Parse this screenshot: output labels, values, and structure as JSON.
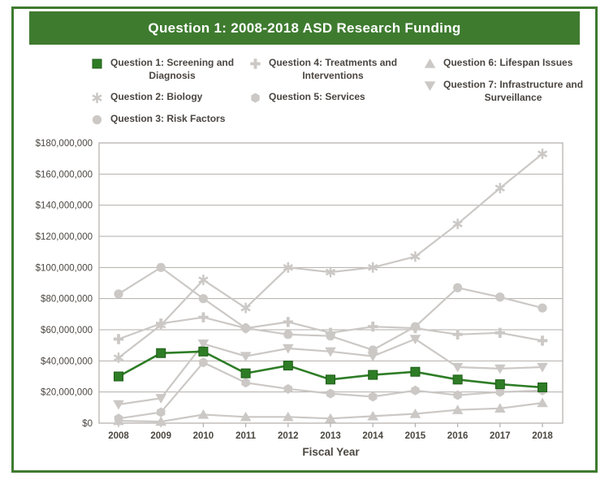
{
  "header": {
    "title": "Question 1: 2008-2018 ASD Research Funding"
  },
  "colors": {
    "brand_green": "#3e7b2f",
    "series_green": "#2e7d26",
    "series_green_stroke": "#1f5e18",
    "series_gray": "#cbc8c5",
    "grid_gray": "#b2aeaa",
    "axis_text": "#4c4741",
    "legend_text": "#4a4540"
  },
  "chart_data": {
    "type": "line",
    "title": "Question 1: 2008-2018 ASD Research Funding",
    "xlabel": "Fiscal Year",
    "ylabel": "",
    "x": [
      2008,
      2009,
      2010,
      2011,
      2012,
      2013,
      2014,
      2015,
      2016,
      2017,
      2018
    ],
    "ylim": [
      0,
      180000000
    ],
    "ytick_interval": 20000000,
    "ytick_prefix": "$",
    "grid": true,
    "legend_position": "top",
    "series": [
      {
        "id": "q2",
        "name": "Question 2: Biology",
        "label_lines": [
          "Question 2: Biology"
        ],
        "marker": "asterisk",
        "color_key": "gray",
        "legend_column": 0,
        "legend_row": 1,
        "values": [
          42000000,
          63000000,
          92000000,
          74000000,
          100000000,
          97000000,
          100000000,
          107000000,
          128000000,
          151000000,
          173000000
        ]
      },
      {
        "id": "q3",
        "name": "Question 3: Risk Factors",
        "label_lines": [
          "Question 3: Risk Factors"
        ],
        "marker": "circle",
        "color_key": "gray",
        "legend_column": 0,
        "legend_row": 2,
        "values": [
          83000000,
          100000000,
          80000000,
          61000000,
          57000000,
          56000000,
          47000000,
          62000000,
          87000000,
          81000000,
          74000000
        ]
      },
      {
        "id": "q4",
        "name": "Question 4: Treatments and Interventions",
        "label_lines": [
          "Question 4: Treatments and",
          "Interventions"
        ],
        "marker": "plus",
        "color_key": "gray",
        "legend_column": 1,
        "legend_row": 0,
        "values": [
          54000000,
          64000000,
          68000000,
          61000000,
          65000000,
          58000000,
          62000000,
          61000000,
          57000000,
          58000000,
          53000000
        ]
      },
      {
        "id": "q5",
        "name": "Question 5: Services",
        "label_lines": [
          "Question 5: Services"
        ],
        "marker": "hexagon",
        "color_key": "gray",
        "legend_column": 1,
        "legend_row": 1,
        "values": [
          3000000,
          7000000,
          39000000,
          26000000,
          22000000,
          19000000,
          17000000,
          21000000,
          18000000,
          20000000,
          21000000
        ]
      },
      {
        "id": "q6",
        "name": "Question 6: Lifespan Issues",
        "label_lines": [
          "Question 6: Lifespan Issues"
        ],
        "marker": "triangle-up",
        "color_key": "gray",
        "legend_column": 2,
        "legend_row": 0,
        "values": [
          1500000,
          1000000,
          5500000,
          4000000,
          4000000,
          3000000,
          4500000,
          6000000,
          8500000,
          9500000,
          13000000
        ]
      },
      {
        "id": "q7",
        "name": "Question 7: Infrastructure and Surveillance",
        "label_lines": [
          "Question 7: Infrastructure and",
          "Surveillance"
        ],
        "marker": "triangle-down",
        "color_key": "gray",
        "legend_column": 2,
        "legend_row": 1,
        "values": [
          12000000,
          16000000,
          51000000,
          43000000,
          48000000,
          46000000,
          43000000,
          54000000,
          36000000,
          35000000,
          36000000
        ]
      },
      {
        "id": "q1",
        "name": "Question 1: Screening and Diagnosis",
        "label_lines": [
          "Question 1: Screening and",
          "Diagnosis"
        ],
        "marker": "square",
        "color_key": "green",
        "legend_column": 0,
        "legend_row": 0,
        "values": [
          30000000,
          45000000,
          46000000,
          32000000,
          37000000,
          28000000,
          31000000,
          33000000,
          28000000,
          25000000,
          23000000
        ]
      }
    ]
  }
}
